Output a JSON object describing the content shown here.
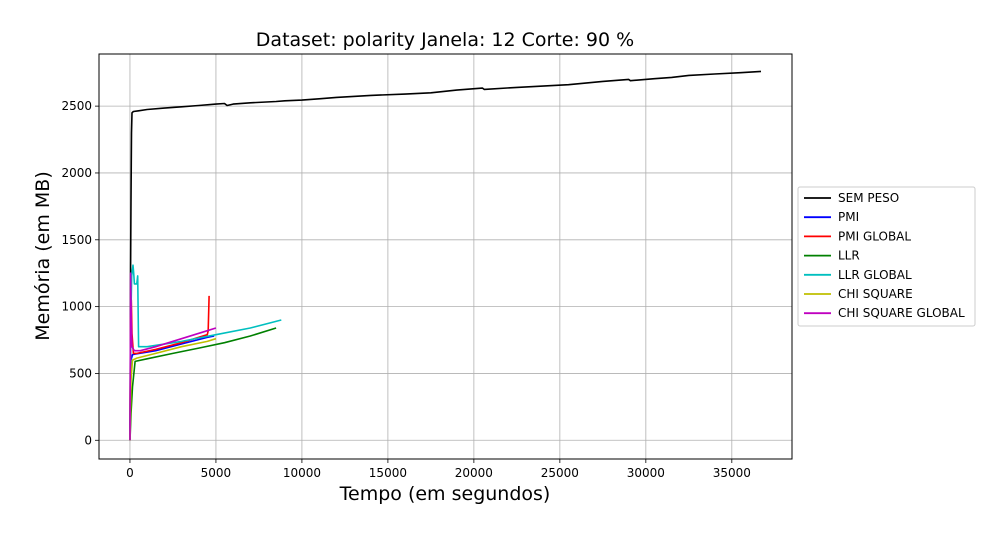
{
  "chart_data": {
    "type": "line",
    "title": "Dataset: polarity Janela: 12 Corte: 90 %",
    "xlabel": "Tempo (em segundos)",
    "ylabel": "Memória (em MB)",
    "xlim": [
      -1800,
      38500
    ],
    "ylim": [
      -140,
      2890
    ],
    "xticks": [
      0,
      5000,
      10000,
      15000,
      20000,
      25000,
      30000,
      35000
    ],
    "yticks": [
      0,
      500,
      1000,
      1500,
      2000,
      2500
    ],
    "grid": true,
    "legend_position": "right",
    "series": [
      {
        "name": "SEM PESO",
        "color": "#000000",
        "points": [
          [
            0,
            0
          ],
          [
            40,
            1300
          ],
          [
            60,
            1800
          ],
          [
            90,
            2300
          ],
          [
            120,
            2450
          ],
          [
            200,
            2460
          ],
          [
            500,
            2465
          ],
          [
            1000,
            2475
          ],
          [
            2000,
            2485
          ],
          [
            3000,
            2495
          ],
          [
            4000,
            2505
          ],
          [
            5000,
            2515
          ],
          [
            5500,
            2520
          ],
          [
            5650,
            2505
          ],
          [
            6000,
            2515
          ],
          [
            7000,
            2525
          ],
          [
            8500,
            2535
          ],
          [
            9000,
            2540
          ],
          [
            10000,
            2545
          ],
          [
            11000,
            2555
          ],
          [
            12000,
            2565
          ],
          [
            14000,
            2580
          ],
          [
            16000,
            2590
          ],
          [
            17500,
            2600
          ],
          [
            19000,
            2620
          ],
          [
            20500,
            2635
          ],
          [
            20600,
            2625
          ],
          [
            22500,
            2640
          ],
          [
            24000,
            2650
          ],
          [
            25500,
            2660
          ],
          [
            27500,
            2685
          ],
          [
            29000,
            2700
          ],
          [
            29100,
            2690
          ],
          [
            30500,
            2705
          ],
          [
            31500,
            2715
          ],
          [
            32500,
            2730
          ],
          [
            34000,
            2740
          ],
          [
            35500,
            2750
          ],
          [
            36700,
            2760
          ]
        ]
      },
      {
        "name": "PMI",
        "color": "#0000ff",
        "points": [
          [
            0,
            0
          ],
          [
            60,
            600
          ],
          [
            150,
            640
          ],
          [
            300,
            645
          ],
          [
            1500,
            670
          ],
          [
            3000,
            720
          ],
          [
            4500,
            770
          ],
          [
            4900,
            780
          ]
        ]
      },
      {
        "name": "PMI GLOBAL",
        "color": "#ff0000",
        "points": [
          [
            0,
            0
          ],
          [
            40,
            900
          ],
          [
            80,
            1050
          ],
          [
            120,
            800
          ],
          [
            200,
            650
          ],
          [
            400,
            650
          ],
          [
            1500,
            680
          ],
          [
            3000,
            730
          ],
          [
            4500,
            790
          ],
          [
            4550,
            820
          ],
          [
            4600,
            1080
          ]
        ]
      },
      {
        "name": "LLR",
        "color": "#008000",
        "points": [
          [
            0,
            0
          ],
          [
            60,
            200
          ],
          [
            150,
            400
          ],
          [
            300,
            590
          ],
          [
            1000,
            610
          ],
          [
            2500,
            650
          ],
          [
            4000,
            690
          ],
          [
            5500,
            730
          ],
          [
            7000,
            780
          ],
          [
            8500,
            840
          ]
        ]
      },
      {
        "name": "LLR GLOBAL",
        "color": "#00bfbf",
        "points": [
          [
            0,
            0
          ],
          [
            50,
            900
          ],
          [
            100,
            1230
          ],
          [
            180,
            1310
          ],
          [
            220,
            1250
          ],
          [
            260,
            1170
          ],
          [
            400,
            1170
          ],
          [
            450,
            1230
          ],
          [
            500,
            700
          ],
          [
            1000,
            700
          ],
          [
            3000,
            740
          ],
          [
            5000,
            790
          ],
          [
            7000,
            840
          ],
          [
            8800,
            900
          ]
        ]
      },
      {
        "name": "CHI SQUARE",
        "color": "#bfbf00",
        "points": [
          [
            0,
            0
          ],
          [
            60,
            450
          ],
          [
            150,
            600
          ],
          [
            400,
            615
          ],
          [
            1500,
            650
          ],
          [
            3000,
            700
          ],
          [
            4500,
            740
          ],
          [
            5000,
            760
          ]
        ]
      },
      {
        "name": "CHI SQUARE GLOBAL",
        "color": "#bf00bf",
        "points": [
          [
            0,
            0
          ],
          [
            40,
            1250
          ],
          [
            80,
            900
          ],
          [
            120,
            700
          ],
          [
            250,
            670
          ],
          [
            600,
            670
          ],
          [
            1500,
            700
          ],
          [
            3000,
            760
          ],
          [
            4500,
            820
          ],
          [
            5000,
            840
          ]
        ]
      }
    ]
  }
}
